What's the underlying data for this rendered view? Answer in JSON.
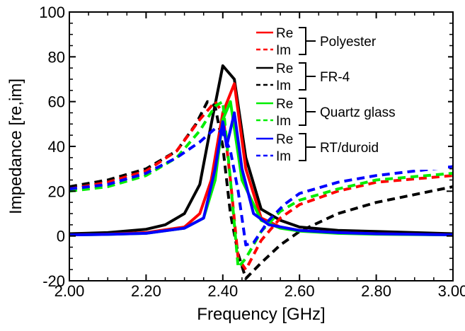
{
  "chart_data": {
    "type": "line",
    "xlabel": "Frequency [GHz]",
    "ylabel": "Impedance [re,im]",
    "xlim": [
      2.0,
      3.0
    ],
    "ylim": [
      -20,
      100
    ],
    "x_ticks": [
      "2.00",
      "2.20",
      "2.40",
      "2.60",
      "2.80",
      "3.00"
    ],
    "y_ticks": [
      "-20",
      "0",
      "20",
      "40",
      "60",
      "80",
      "100"
    ],
    "grid": false,
    "legend_position": "top-right",
    "legend_groups": [
      {
        "name": "Polyester",
        "color": "#ff0000",
        "re_label": "Re",
        "im_label": "Im"
      },
      {
        "name": "FR-4",
        "color": "#000000",
        "re_label": "Re",
        "im_label": "Im"
      },
      {
        "name": "Quartz glass",
        "color": "#00ee00",
        "re_label": "Re",
        "im_label": "Im"
      },
      {
        "name": "RT/duroid",
        "color": "#0000ff",
        "re_label": "Re",
        "im_label": "Im"
      }
    ],
    "series": [
      {
        "group": "FR-4",
        "part": "Re",
        "color": "#000000",
        "dash": "solid",
        "x": [
          2.0,
          2.1,
          2.2,
          2.25,
          2.3,
          2.34,
          2.37,
          2.4,
          2.43,
          2.46,
          2.5,
          2.55,
          2.6,
          2.7,
          2.8,
          3.0
        ],
        "y": [
          1,
          1.5,
          3,
          5,
          10,
          23,
          50,
          76,
          70,
          35,
          12,
          7,
          4,
          2.5,
          2,
          1
        ]
      },
      {
        "group": "FR-4",
        "part": "Im",
        "color": "#000000",
        "dash": "dashed",
        "x": [
          2.0,
          2.1,
          2.2,
          2.28,
          2.33,
          2.36,
          2.38,
          2.4,
          2.42,
          2.44,
          2.46,
          2.5,
          2.55,
          2.6,
          2.7,
          2.8,
          3.0
        ],
        "y": [
          22,
          25,
          30,
          38,
          50,
          60,
          58,
          40,
          10,
          -8,
          -19,
          -12,
          -4,
          2,
          10,
          15,
          22
        ]
      },
      {
        "group": "Polyester",
        "part": "Re",
        "color": "#ff0000",
        "dash": "solid",
        "x": [
          2.0,
          2.1,
          2.2,
          2.3,
          2.34,
          2.37,
          2.4,
          2.43,
          2.46,
          2.5,
          2.55,
          2.6,
          2.7,
          2.8,
          3.0
        ],
        "y": [
          0.5,
          0.8,
          1.5,
          4,
          10,
          25,
          55,
          68,
          30,
          8,
          4,
          2.5,
          1.5,
          1,
          0.5
        ]
      },
      {
        "group": "Polyester",
        "part": "Im",
        "color": "#ff0000",
        "dash": "dashed",
        "x": [
          2.0,
          2.1,
          2.2,
          2.28,
          2.34,
          2.38,
          2.4,
          2.42,
          2.44,
          2.46,
          2.5,
          2.55,
          2.6,
          2.7,
          2.8,
          3.0
        ],
        "y": [
          21,
          24,
          29,
          38,
          52,
          60,
          55,
          25,
          -10,
          -15,
          -2,
          8,
          14,
          20,
          24,
          27
        ]
      },
      {
        "group": "Quartz glass",
        "part": "Re",
        "color": "#00ee00",
        "dash": "solid",
        "x": [
          2.0,
          2.1,
          2.2,
          2.3,
          2.35,
          2.38,
          2.4,
          2.42,
          2.45,
          2.5,
          2.55,
          2.6,
          2.7,
          2.8,
          3.0
        ],
        "y": [
          0.5,
          0.7,
          1.2,
          3.5,
          8,
          25,
          52,
          60,
          25,
          7,
          3.5,
          2.2,
          1.2,
          0.8,
          0.5
        ]
      },
      {
        "group": "Quartz glass",
        "part": "Im",
        "color": "#00ee00",
        "dash": "dashed",
        "x": [
          2.0,
          2.1,
          2.2,
          2.28,
          2.34,
          2.38,
          2.4,
          2.42,
          2.44,
          2.46,
          2.5,
          2.55,
          2.6,
          2.7,
          2.8,
          3.0
        ],
        "y": [
          20,
          22,
          27,
          35,
          47,
          58,
          60,
          25,
          -14,
          -10,
          2,
          11,
          16,
          21,
          25,
          28
        ]
      },
      {
        "group": "RT/duroid",
        "part": "Re",
        "color": "#0000ff",
        "dash": "solid",
        "x": [
          2.0,
          2.1,
          2.2,
          2.3,
          2.35,
          2.38,
          2.4,
          2.41,
          2.43,
          2.45,
          2.48,
          2.52,
          2.6,
          2.7,
          2.8,
          3.0
        ],
        "y": [
          0.5,
          0.7,
          1.2,
          3.5,
          8,
          30,
          51,
          40,
          55,
          30,
          10,
          5,
          2.5,
          1.5,
          1,
          0.5
        ]
      },
      {
        "group": "RT/duroid",
        "part": "Im",
        "color": "#0000ff",
        "dash": "dashed",
        "x": [
          2.0,
          2.1,
          2.2,
          2.28,
          2.34,
          2.38,
          2.4,
          2.42,
          2.44,
          2.46,
          2.48,
          2.52,
          2.56,
          2.6,
          2.7,
          2.8,
          3.0
        ],
        "y": [
          21,
          23,
          28,
          35,
          42,
          48,
          46,
          38,
          20,
          -4,
          -3,
          7,
          14,
          19,
          24,
          27,
          31
        ]
      }
    ]
  }
}
